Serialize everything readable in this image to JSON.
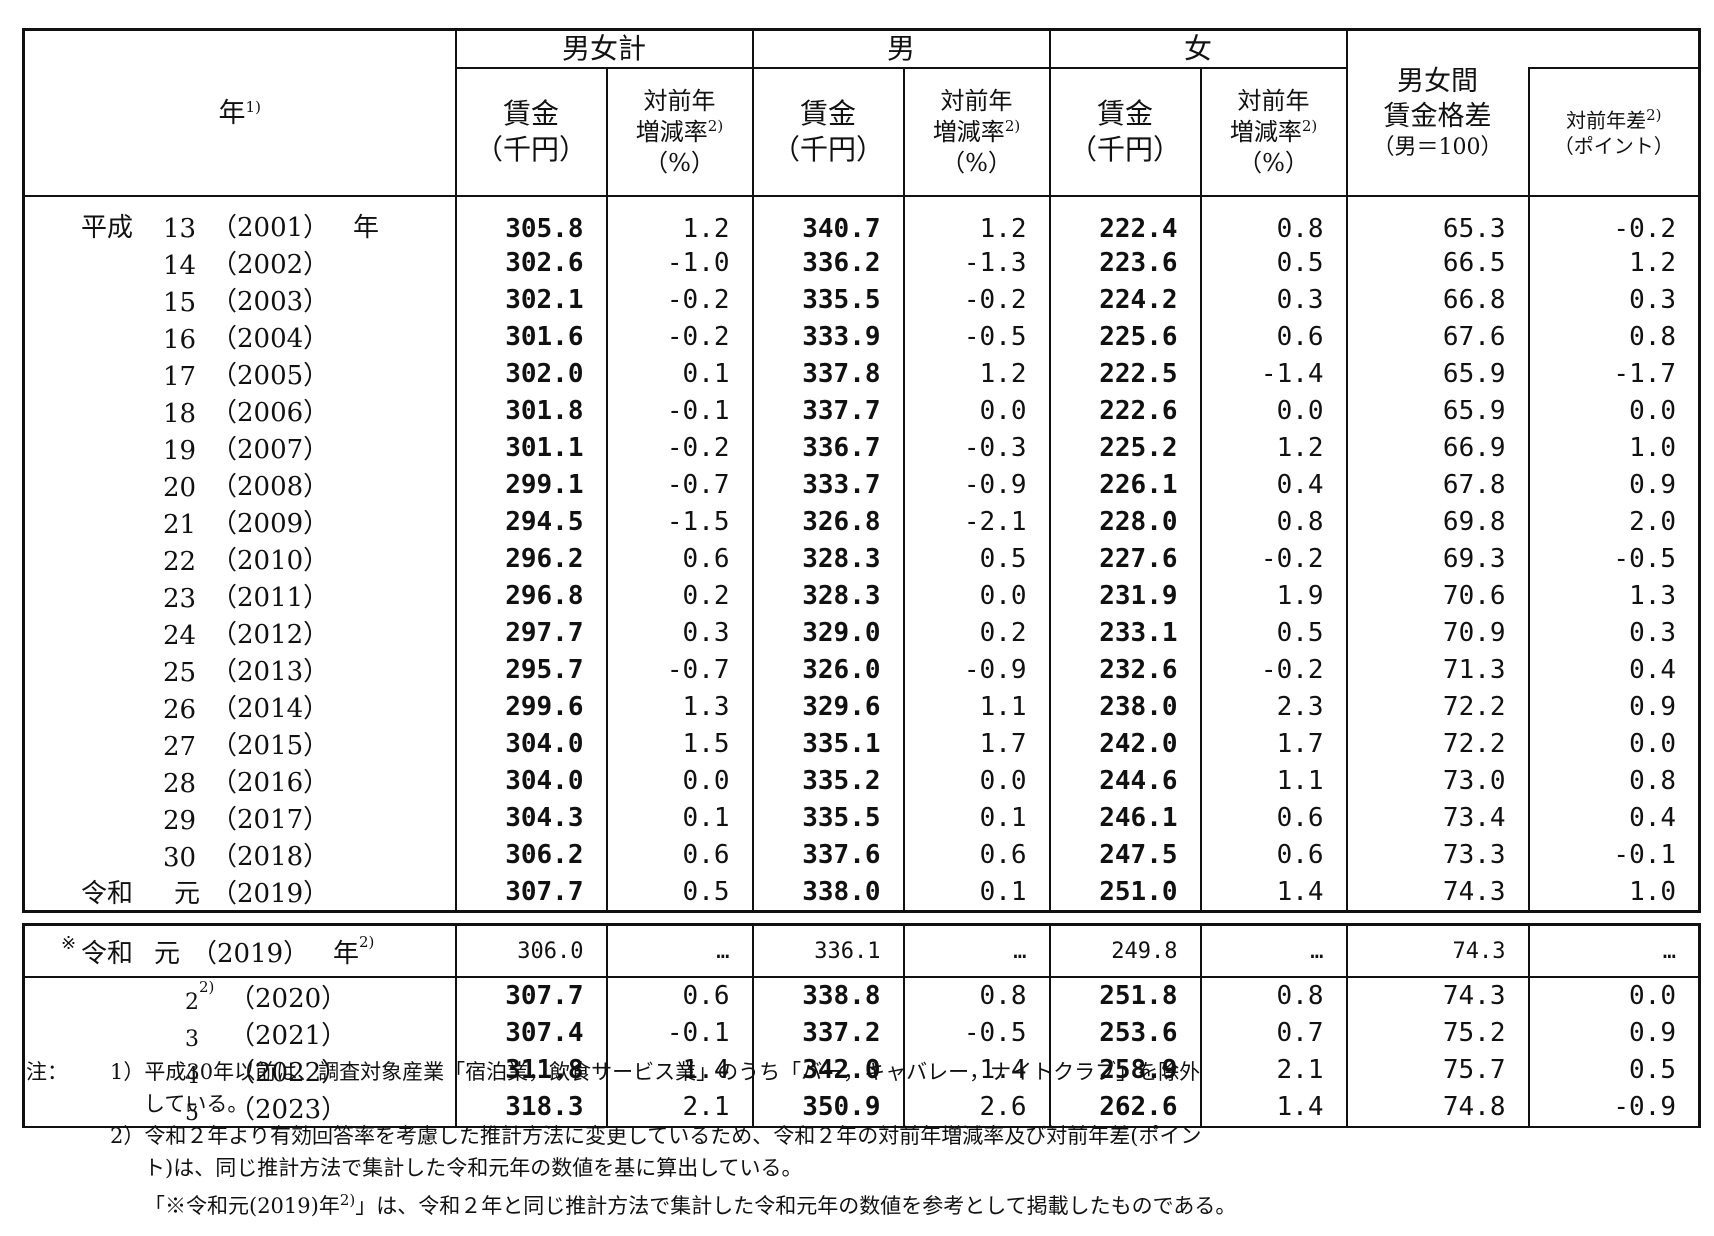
{
  "header": {
    "year_label": "年",
    "year_sup": "1)",
    "total": "男女計",
    "male": "男",
    "female": "女",
    "wage_line1": "賃金",
    "wage_line2": "（千円）",
    "change_line1": "対前年",
    "change_line2": "増減率",
    "change_sup": "2)",
    "change_line3": "（%）",
    "gap_line1": "男女間",
    "gap_line2": "賃金格差",
    "gap_line3": "（男＝100）",
    "diff_line1": "対前年差",
    "diff_sup": "2)",
    "diff_line2": "（ポイント）"
  },
  "rows_a": [
    {
      "era": "平成",
      "num": "13",
      "year": "（2001）",
      "suffix": "年",
      "total": "305.8",
      "total_chg": "1.2",
      "male": "340.7",
      "male_chg": "1.2",
      "female": "222.4",
      "female_chg": "0.8",
      "gap": "65.3",
      "gap_diff": "-0.2"
    },
    {
      "era": "",
      "num": "14",
      "year": "（2002）",
      "suffix": "",
      "total": "302.6",
      "total_chg": "-1.0",
      "male": "336.2",
      "male_chg": "-1.3",
      "female": "223.6",
      "female_chg": "0.5",
      "gap": "66.5",
      "gap_diff": "1.2"
    },
    {
      "era": "",
      "num": "15",
      "year": "（2003）",
      "suffix": "",
      "total": "302.1",
      "total_chg": "-0.2",
      "male": "335.5",
      "male_chg": "-0.2",
      "female": "224.2",
      "female_chg": "0.3",
      "gap": "66.8",
      "gap_diff": "0.3"
    },
    {
      "era": "",
      "num": "16",
      "year": "（2004）",
      "suffix": "",
      "total": "301.6",
      "total_chg": "-0.2",
      "male": "333.9",
      "male_chg": "-0.5",
      "female": "225.6",
      "female_chg": "0.6",
      "gap": "67.6",
      "gap_diff": "0.8"
    },
    {
      "era": "",
      "num": "17",
      "year": "（2005）",
      "suffix": "",
      "total": "302.0",
      "total_chg": "0.1",
      "male": "337.8",
      "male_chg": "1.2",
      "female": "222.5",
      "female_chg": "-1.4",
      "gap": "65.9",
      "gap_diff": "-1.7"
    },
    {
      "era": "",
      "num": "18",
      "year": "（2006）",
      "suffix": "",
      "total": "301.8",
      "total_chg": "-0.1",
      "male": "337.7",
      "male_chg": "0.0",
      "female": "222.6",
      "female_chg": "0.0",
      "gap": "65.9",
      "gap_diff": "0.0"
    },
    {
      "era": "",
      "num": "19",
      "year": "（2007）",
      "suffix": "",
      "total": "301.1",
      "total_chg": "-0.2",
      "male": "336.7",
      "male_chg": "-0.3",
      "female": "225.2",
      "female_chg": "1.2",
      "gap": "66.9",
      "gap_diff": "1.0"
    },
    {
      "era": "",
      "num": "20",
      "year": "（2008）",
      "suffix": "",
      "total": "299.1",
      "total_chg": "-0.7",
      "male": "333.7",
      "male_chg": "-0.9",
      "female": "226.1",
      "female_chg": "0.4",
      "gap": "67.8",
      "gap_diff": "0.9"
    },
    {
      "era": "",
      "num": "21",
      "year": "（2009）",
      "suffix": "",
      "total": "294.5",
      "total_chg": "-1.5",
      "male": "326.8",
      "male_chg": "-2.1",
      "female": "228.0",
      "female_chg": "0.8",
      "gap": "69.8",
      "gap_diff": "2.0"
    },
    {
      "era": "",
      "num": "22",
      "year": "（2010）",
      "suffix": "",
      "total": "296.2",
      "total_chg": "0.6",
      "male": "328.3",
      "male_chg": "0.5",
      "female": "227.6",
      "female_chg": "-0.2",
      "gap": "69.3",
      "gap_diff": "-0.5"
    },
    {
      "era": "",
      "num": "23",
      "year": "（2011）",
      "suffix": "",
      "total": "296.8",
      "total_chg": "0.2",
      "male": "328.3",
      "male_chg": "0.0",
      "female": "231.9",
      "female_chg": "1.9",
      "gap": "70.6",
      "gap_diff": "1.3"
    },
    {
      "era": "",
      "num": "24",
      "year": "（2012）",
      "suffix": "",
      "total": "297.7",
      "total_chg": "0.3",
      "male": "329.0",
      "male_chg": "0.2",
      "female": "233.1",
      "female_chg": "0.5",
      "gap": "70.9",
      "gap_diff": "0.3"
    },
    {
      "era": "",
      "num": "25",
      "year": "（2013）",
      "suffix": "",
      "total": "295.7",
      "total_chg": "-0.7",
      "male": "326.0",
      "male_chg": "-0.9",
      "female": "232.6",
      "female_chg": "-0.2",
      "gap": "71.3",
      "gap_diff": "0.4"
    },
    {
      "era": "",
      "num": "26",
      "year": "（2014）",
      "suffix": "",
      "total": "299.6",
      "total_chg": "1.3",
      "male": "329.6",
      "male_chg": "1.1",
      "female": "238.0",
      "female_chg": "2.3",
      "gap": "72.2",
      "gap_diff": "0.9"
    },
    {
      "era": "",
      "num": "27",
      "year": "（2015）",
      "suffix": "",
      "total": "304.0",
      "total_chg": "1.5",
      "male": "335.1",
      "male_chg": "1.7",
      "female": "242.0",
      "female_chg": "1.7",
      "gap": "72.2",
      "gap_diff": "0.0"
    },
    {
      "era": "",
      "num": "28",
      "year": "（2016）",
      "suffix": "",
      "total": "304.0",
      "total_chg": "0.0",
      "male": "335.2",
      "male_chg": "0.0",
      "female": "244.6",
      "female_chg": "1.1",
      "gap": "73.0",
      "gap_diff": "0.8"
    },
    {
      "era": "",
      "num": "29",
      "year": "（2017）",
      "suffix": "",
      "total": "304.3",
      "total_chg": "0.1",
      "male": "335.5",
      "male_chg": "0.1",
      "female": "246.1",
      "female_chg": "0.6",
      "gap": "73.4",
      "gap_diff": "0.4"
    },
    {
      "era": "",
      "num": "30",
      "year": "（2018）",
      "suffix": "",
      "total": "306.2",
      "total_chg": "0.6",
      "male": "337.6",
      "male_chg": "0.6",
      "female": "247.5",
      "female_chg": "0.6",
      "gap": "73.3",
      "gap_diff": "-0.1"
    },
    {
      "era": "令和",
      "num": "元",
      "year": "（2019）",
      "suffix": "",
      "total": "307.7",
      "total_chg": "0.5",
      "male": "338.0",
      "male_chg": "0.1",
      "female": "251.0",
      "female_chg": "1.4",
      "gap": "74.3",
      "gap_diff": "1.0"
    }
  ],
  "ref_row": {
    "mark": "※",
    "era": "令和",
    "num": "元",
    "year": "（2019）",
    "suffix": "年",
    "sup": "2)",
    "total": "306.0",
    "total_chg": "…",
    "male": "336.1",
    "male_chg": "…",
    "female": "249.8",
    "female_chg": "…",
    "gap": "74.3",
    "gap_diff": "…"
  },
  "rows_b": [
    {
      "num": "2",
      "sup": "2)",
      "year": "（2020）",
      "total": "307.7",
      "total_chg": "0.6",
      "male": "338.8",
      "male_chg": "0.8",
      "female": "251.8",
      "female_chg": "0.8",
      "gap": "74.3",
      "gap_diff": "0.0"
    },
    {
      "num": "3",
      "sup": "",
      "year": "（2021）",
      "total": "307.4",
      "total_chg": "-0.1",
      "male": "337.2",
      "male_chg": "-0.5",
      "female": "253.6",
      "female_chg": "0.7",
      "gap": "75.2",
      "gap_diff": "0.9"
    },
    {
      "num": "4",
      "sup": "",
      "year": "（2022）",
      "total": "311.8",
      "total_chg": "1.4",
      "male": "342.0",
      "male_chg": "1.4",
      "female": "258.9",
      "female_chg": "2.1",
      "gap": "75.7",
      "gap_diff": "0.5"
    },
    {
      "num": "5",
      "sup": "",
      "year": "（2023）",
      "total": "318.3",
      "total_chg": "2.1",
      "male": "350.9",
      "male_chg": "2.6",
      "female": "262.6",
      "female_chg": "1.4",
      "gap": "74.8",
      "gap_diff": "-0.9"
    }
  ],
  "notes": {
    "prefix": "注：",
    "n1_line1": "1）平成30年以前は、調査対象産業「宿泊業，飲食サービス業」のうち「バー，キャバレー，ナイトクラブ」を除外",
    "n1_line2": "している。",
    "n2_line1": "2）令和２年より有効回答率を考慮した推計方法に変更しているため、令和２年の対前年増減率及び対前年差(ポイン",
    "n2_line2": "ト)は、同じ推計方法で集計した令和元年の数値を基に算出している。",
    "n3_pre": "「※令和元(2019)年",
    "n3_sup": "2)",
    "n3_post": "」は、令和２年と同じ推計方法で集計した令和元年の数値を参考として掲載したものである。"
  }
}
